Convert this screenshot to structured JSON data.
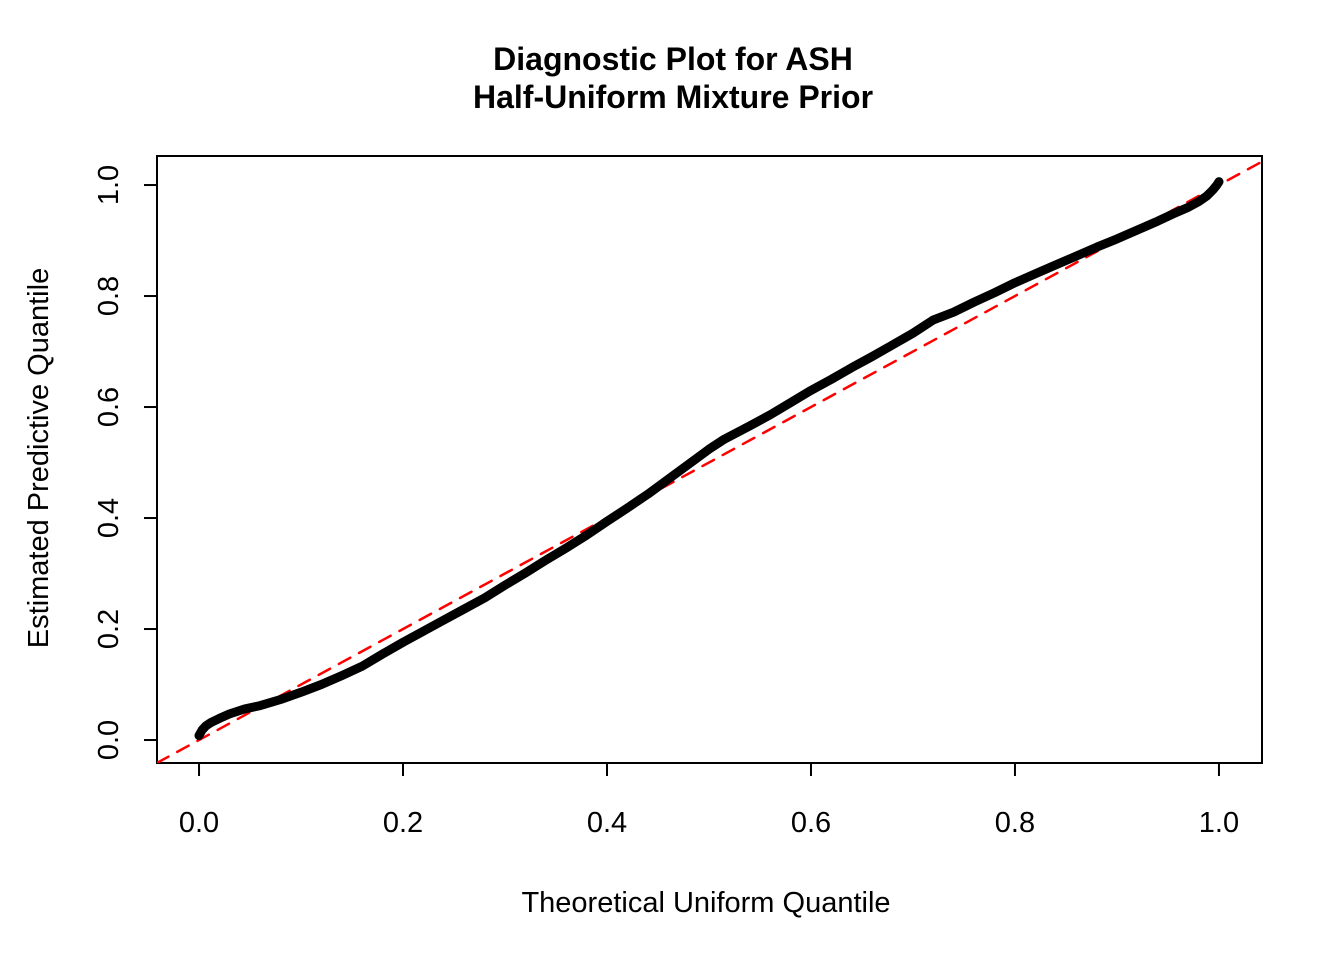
{
  "colors": {
    "background": "#ffffff",
    "curve": "#000000",
    "reference_line": "#ff0000",
    "axis": "#000000",
    "text": "#000000"
  },
  "chart_data": {
    "type": "line",
    "title_lines": [
      "Diagnostic Plot for ASH",
      "Half-Uniform Mixture Prior"
    ],
    "xlabel": "Theoretical Uniform Quantile",
    "ylabel": "Estimated Predictive Quantile",
    "xlim": [
      -0.0412,
      1.0422
    ],
    "ylim": [
      -0.0414,
      1.0523
    ],
    "grid": false,
    "legend": "none",
    "x_ticks": [
      0.0,
      0.2,
      0.4,
      0.6,
      0.8,
      1.0
    ],
    "y_ticks": [
      0.0,
      0.2,
      0.4,
      0.6,
      0.8,
      1.0
    ],
    "x_tick_labels": [
      "0.0",
      "0.2",
      "0.4",
      "0.6",
      "0.8",
      "1.0"
    ],
    "y_tick_labels": [
      "0.0",
      "0.2",
      "0.4",
      "0.6",
      "0.8",
      "1.0"
    ],
    "series": [
      {
        "name": "estimated-predictive-quantile-curve",
        "style": "solid",
        "color": "#000000",
        "stroke_width": 9,
        "points": [
          [
            0.0,
            0.008
          ],
          [
            0.003,
            0.018
          ],
          [
            0.007,
            0.026
          ],
          [
            0.012,
            0.032
          ],
          [
            0.02,
            0.039
          ],
          [
            0.03,
            0.047
          ],
          [
            0.045,
            0.056
          ],
          [
            0.06,
            0.062
          ],
          [
            0.08,
            0.073
          ],
          [
            0.1,
            0.086
          ],
          [
            0.12,
            0.1
          ],
          [
            0.14,
            0.116
          ],
          [
            0.16,
            0.133
          ],
          [
            0.18,
            0.155
          ],
          [
            0.2,
            0.176
          ],
          [
            0.22,
            0.196
          ],
          [
            0.24,
            0.216
          ],
          [
            0.26,
            0.236
          ],
          [
            0.28,
            0.256
          ],
          [
            0.3,
            0.279
          ],
          [
            0.32,
            0.301
          ],
          [
            0.34,
            0.324
          ],
          [
            0.36,
            0.346
          ],
          [
            0.38,
            0.369
          ],
          [
            0.4,
            0.394
          ],
          [
            0.42,
            0.418
          ],
          [
            0.44,
            0.443
          ],
          [
            0.46,
            0.47
          ],
          [
            0.48,
            0.497
          ],
          [
            0.5,
            0.524
          ],
          [
            0.515,
            0.542
          ],
          [
            0.54,
            0.566
          ],
          [
            0.56,
            0.586
          ],
          [
            0.58,
            0.608
          ],
          [
            0.6,
            0.63
          ],
          [
            0.62,
            0.65
          ],
          [
            0.64,
            0.671
          ],
          [
            0.66,
            0.691
          ],
          [
            0.68,
            0.712
          ],
          [
            0.7,
            0.733
          ],
          [
            0.72,
            0.757
          ],
          [
            0.74,
            0.771
          ],
          [
            0.76,
            0.789
          ],
          [
            0.78,
            0.806
          ],
          [
            0.8,
            0.824
          ],
          [
            0.82,
            0.84
          ],
          [
            0.84,
            0.856
          ],
          [
            0.86,
            0.872
          ],
          [
            0.88,
            0.888
          ],
          [
            0.9,
            0.903
          ],
          [
            0.92,
            0.919
          ],
          [
            0.94,
            0.935
          ],
          [
            0.955,
            0.948
          ],
          [
            0.97,
            0.96
          ],
          [
            0.98,
            0.97
          ],
          [
            0.988,
            0.98
          ],
          [
            0.994,
            0.991
          ],
          [
            0.998,
            1.0
          ],
          [
            1.0,
            1.006
          ]
        ]
      },
      {
        "name": "reference-diagonal-y-equals-x",
        "style": "dashed",
        "color": "#ff0000",
        "stroke_width": 2.5,
        "points": [
          [
            -0.0412,
            -0.0412
          ],
          [
            1.0422,
            1.0422
          ]
        ]
      }
    ]
  }
}
